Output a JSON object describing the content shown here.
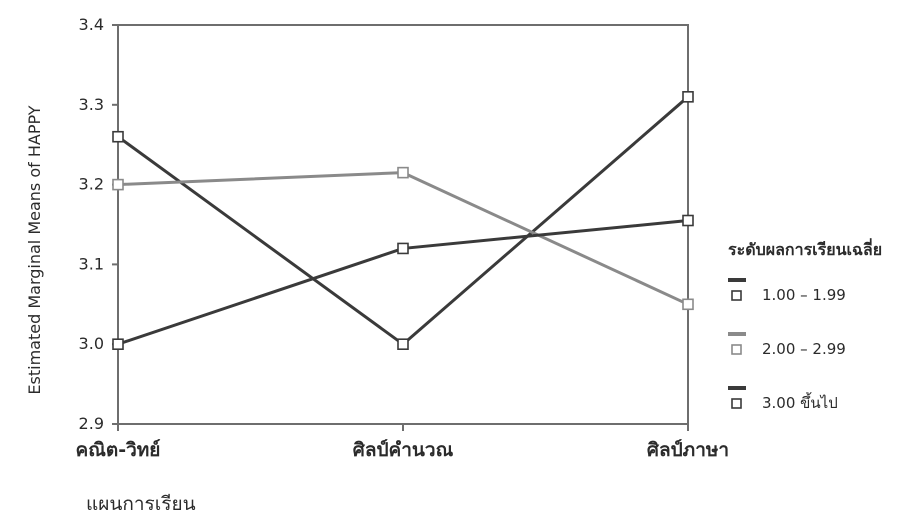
{
  "chart_data": {
    "type": "line",
    "ylabel": "Estimated Marginal Means of HAPPY",
    "xlabel": "แผนการเรียน",
    "categories": [
      "คณิต-วิทย์",
      "ศิลป์คำนวณ",
      "ศิลป์ภาษา"
    ],
    "ylim": [
      2.9,
      3.4
    ],
    "yticks": [
      "2.9",
      "3.0",
      "3.1",
      "3.2",
      "3.3",
      "3.4"
    ],
    "grid": false,
    "legend": {
      "title": "ระดับผลการเรียนเฉลี่ย",
      "placement": "right"
    },
    "series": [
      {
        "name": "1.00 – 1.99",
        "values": [
          3.26,
          3.0,
          3.31
        ],
        "color": "#3a3a3a"
      },
      {
        "name": "2.00 – 2.99",
        "values": [
          3.2,
          3.215,
          3.05
        ],
        "color": "#8a8a8a"
      },
      {
        "name": "3.00 ขึ้นไป",
        "values": [
          3.0,
          3.12,
          3.155
        ],
        "color": "#3a3a3a"
      }
    ]
  }
}
